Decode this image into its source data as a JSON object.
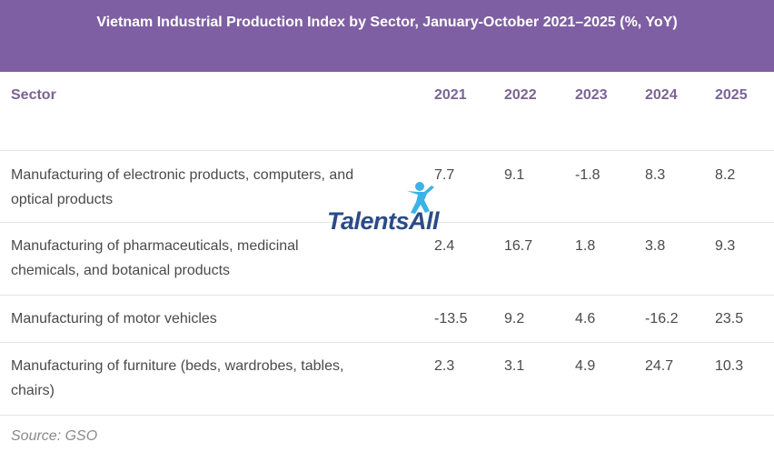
{
  "title": "Vietnam Industrial Production Index by Sector, January-October 2021–2025 (%, YoY)",
  "header": {
    "sector": "Sector",
    "years": [
      "2021",
      "2022",
      "2023",
      "2024",
      "2025"
    ]
  },
  "rows": [
    {
      "sector_line1": "Manufacturing of electronic products, computers, and",
      "sector_line2": "optical products",
      "values": [
        "7.7",
        "9.1",
        "-1.8",
        "8.3",
        "8.2"
      ]
    },
    {
      "sector_line1": "Manufacturing of pharmaceuticals, medicinal",
      "sector_line2": "chemicals, and botanical products",
      "values": [
        "2.4",
        "16.7",
        "1.8",
        "3.8",
        "9.3"
      ]
    },
    {
      "sector_line1": "Manufacturing of motor vehicles",
      "sector_line2": "",
      "values": [
        "-13.5",
        "9.2",
        "4.6",
        "-16.2",
        "23.5"
      ]
    },
    {
      "sector_line1": "Manufacturing of furniture (beds, wardrobes, tables,",
      "sector_line2": "chairs)",
      "values": [
        "2.3",
        "3.1",
        "4.9",
        "24.7",
        "10.3"
      ]
    }
  ],
  "source": "Source: GSO",
  "watermark": {
    "logo_text": "TalentsAll",
    "icon": "person-star-icon"
  },
  "colors": {
    "header_bg": "#7f5fa3",
    "header_text": "#ffffff",
    "column_header_text": "#7b6396",
    "logo_blue": "#2a4b86",
    "logo_cyan": "#3bb3e6"
  },
  "chart_data": {
    "type": "table",
    "title": "Vietnam Industrial Production Index by Sector, January-October 2021–2025 (%, YoY)",
    "columns": [
      "Sector",
      "2021",
      "2022",
      "2023",
      "2024",
      "2025"
    ],
    "categories": [
      "Manufacturing of electronic products, computers, and optical products",
      "Manufacturing of pharmaceuticals, medicinal chemicals, and botanical products",
      "Manufacturing of motor vehicles",
      "Manufacturing of furniture (beds, wardrobes, tables, chairs)"
    ],
    "series": [
      {
        "name": "2021",
        "values": [
          7.7,
          2.4,
          -13.5,
          2.3
        ]
      },
      {
        "name": "2022",
        "values": [
          9.1,
          16.7,
          9.2,
          3.1
        ]
      },
      {
        "name": "2023",
        "values": [
          -1.8,
          1.8,
          4.6,
          4.9
        ]
      },
      {
        "name": "2024",
        "values": [
          8.3,
          3.8,
          -16.2,
          24.7
        ]
      },
      {
        "name": "2025",
        "values": [
          8.2,
          9.3,
          23.5,
          10.3
        ]
      }
    ]
  }
}
